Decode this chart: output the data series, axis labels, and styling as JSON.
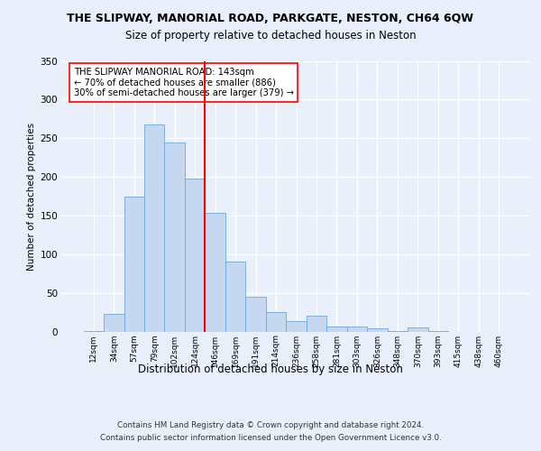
{
  "title_line1": "THE SLIPWAY, MANORIAL ROAD, PARKGATE, NESTON, CH64 6QW",
  "title_line2": "Size of property relative to detached houses in Neston",
  "xlabel": "Distribution of detached houses by size in Neston",
  "ylabel": "Number of detached properties",
  "categories": [
    "12sqm",
    "34sqm",
    "57sqm",
    "79sqm",
    "102sqm",
    "124sqm",
    "146sqm",
    "169sqm",
    "191sqm",
    "214sqm",
    "236sqm",
    "258sqm",
    "281sqm",
    "303sqm",
    "326sqm",
    "348sqm",
    "370sqm",
    "393sqm",
    "415sqm",
    "438sqm",
    "460sqm"
  ],
  "values": [
    1,
    23,
    175,
    268,
    245,
    198,
    153,
    90,
    45,
    25,
    13,
    20,
    6,
    7,
    4,
    1,
    5,
    1,
    0,
    0,
    0
  ],
  "bar_color": "#c5d8f0",
  "bar_edge_color": "#6ea8d8",
  "vline_x": 5.5,
  "vline_color": "red",
  "annotation_text": "THE SLIPWAY MANORIAL ROAD: 143sqm\n← 70% of detached houses are smaller (886)\n30% of semi-detached houses are larger (379) →",
  "annotation_box_color": "white",
  "annotation_box_edge_color": "red",
  "ylim": [
    0,
    350
  ],
  "yticks": [
    0,
    50,
    100,
    150,
    200,
    250,
    300,
    350
  ],
  "footer_line1": "Contains HM Land Registry data © Crown copyright and database right 2024.",
  "footer_line2": "Contains public sector information licensed under the Open Government Licence v3.0.",
  "bg_color": "#eaf0fb"
}
